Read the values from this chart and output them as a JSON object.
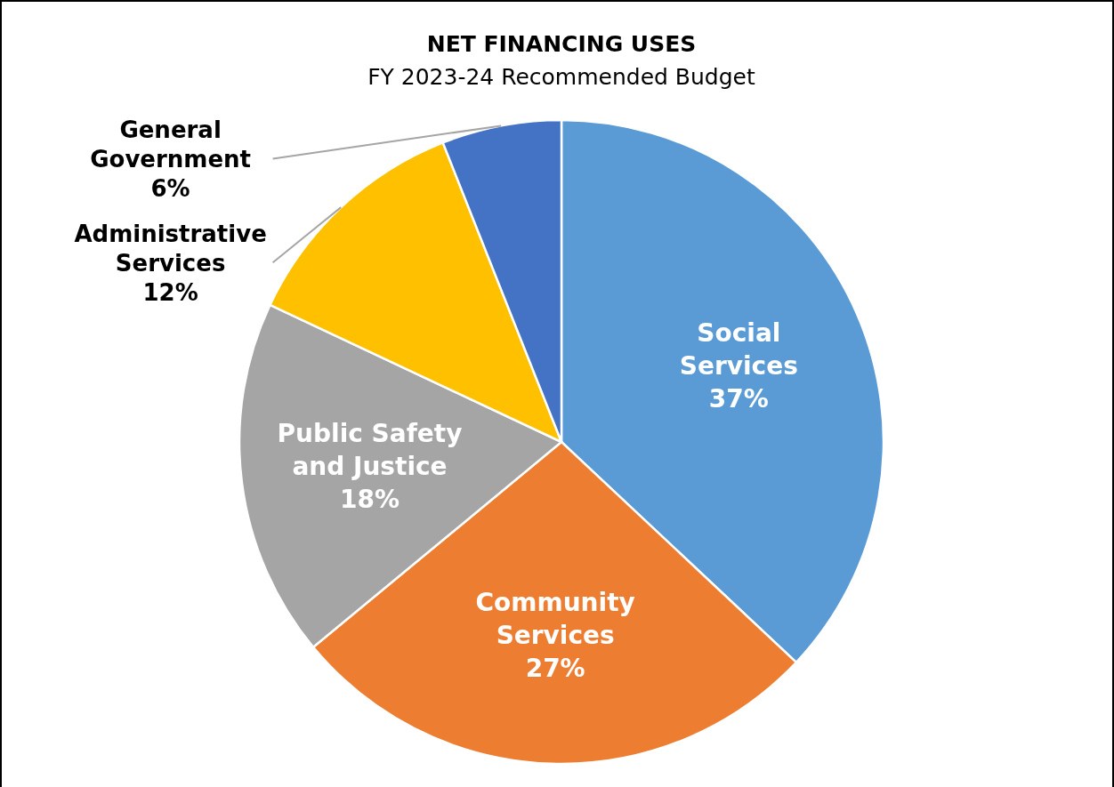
{
  "chart_data": {
    "type": "pie",
    "title": "NET FINANCING USES",
    "subtitle": "FY 2023-24 Recommended Budget",
    "categories": [
      "Social Services",
      "Community Services",
      "Public Safety and Justice",
      "Administrative Services",
      "General Government"
    ],
    "values": [
      37,
      27,
      18,
      12,
      6
    ],
    "value_labels": [
      "37%",
      "27%",
      "18%",
      "12%",
      "6%"
    ],
    "colors": [
      "#5b9bd5",
      "#ed7d31",
      "#a5a5a5",
      "#ffc000",
      "#4472c4"
    ],
    "legend": false
  }
}
